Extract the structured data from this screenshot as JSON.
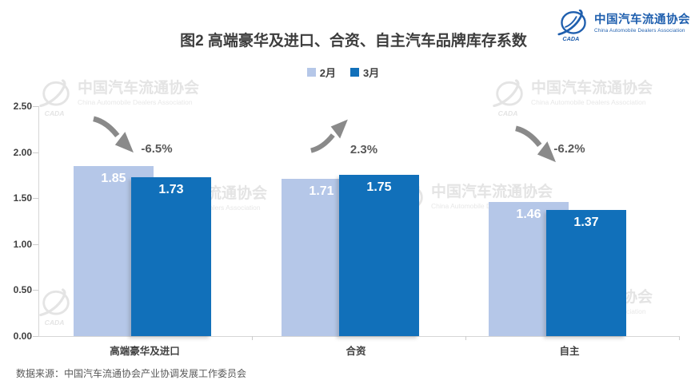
{
  "logo": {
    "name_zh": "中国汽车流通协会",
    "name_en": "China Automobile Dealers Association"
  },
  "watermark": {
    "zh": "中国汽车流通协会",
    "en": "China Automobile Dealers Association",
    "mark": "CADA"
  },
  "title": "图2  高端豪华及进口、合资、自主汽车品牌库存系数",
  "source": "数据来源：中国汽车流通协会产业协调发展工作委员会",
  "chart_data": {
    "type": "bar",
    "title": "图2  高端豪华及进口、合资、自主汽车品牌库存系数",
    "categories": [
      "高端豪华及进口",
      "合资",
      "自主"
    ],
    "series": [
      {
        "name": "2月",
        "color": "#b5c7e8",
        "values": [
          1.85,
          1.71,
          1.46
        ]
      },
      {
        "name": "3月",
        "color": "#1170ba",
        "values": [
          1.73,
          1.75,
          1.37
        ]
      }
    ],
    "annotations": [
      {
        "change": "-6.5%",
        "direction": "down"
      },
      {
        "change": "2.3%",
        "direction": "up"
      },
      {
        "change": "-6.2%",
        "direction": "down"
      }
    ],
    "ylim": [
      0,
      2.5
    ],
    "yticks": [
      "0.00",
      "0.50",
      "1.00",
      "1.50",
      "2.00",
      "2.50"
    ],
    "grid": false,
    "legend_position": "top-center",
    "arrow_color": "#8a8a8a"
  }
}
